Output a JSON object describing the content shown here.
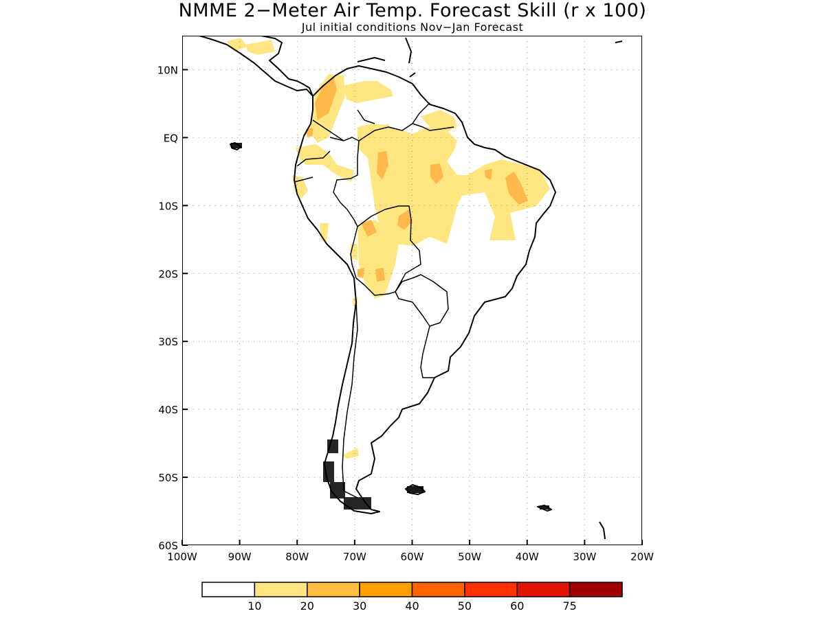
{
  "title": "NMME 2−Meter Air Temp. Forecast Skill (r x 100)",
  "subtitle": "Jul initial conditions   Nov−Jan Forecast",
  "map": {
    "lon_range": [
      -100,
      -20
    ],
    "lat_range": [
      -60,
      15
    ],
    "x_ticks": [
      {
        "lon": -100,
        "label": "100W"
      },
      {
        "lon": -90,
        "label": "90W"
      },
      {
        "lon": -80,
        "label": "80W"
      },
      {
        "lon": -70,
        "label": "70W"
      },
      {
        "lon": -60,
        "label": "60W"
      },
      {
        "lon": -50,
        "label": "50W"
      },
      {
        "lon": -40,
        "label": "40W"
      },
      {
        "lon": -30,
        "label": "30W"
      },
      {
        "lon": -20,
        "label": "20W"
      }
    ],
    "y_ticks": [
      {
        "lat": 10,
        "label": "10N"
      },
      {
        "lat": 0,
        "label": "EQ"
      },
      {
        "lat": -10,
        "label": "10S"
      },
      {
        "lat": -20,
        "label": "20S"
      },
      {
        "lat": -30,
        "label": "30S"
      },
      {
        "lat": -40,
        "label": "40S"
      },
      {
        "lat": -50,
        "label": "50S"
      },
      {
        "lat": -60,
        "label": "60S"
      }
    ],
    "grid": true,
    "colors": {
      "skill_10_20": "#ffe680",
      "skill_20_30": "#ffb84a",
      "land_outline": "#000000"
    }
  },
  "colorbar": {
    "colors": [
      "#ffffff",
      "#ffe680",
      "#ffc040",
      "#ffa000",
      "#ff6400",
      "#ff3200",
      "#e01400",
      "#a00000"
    ],
    "labels": [
      "10",
      "20",
      "30",
      "40",
      "50",
      "60",
      "75"
    ]
  }
}
